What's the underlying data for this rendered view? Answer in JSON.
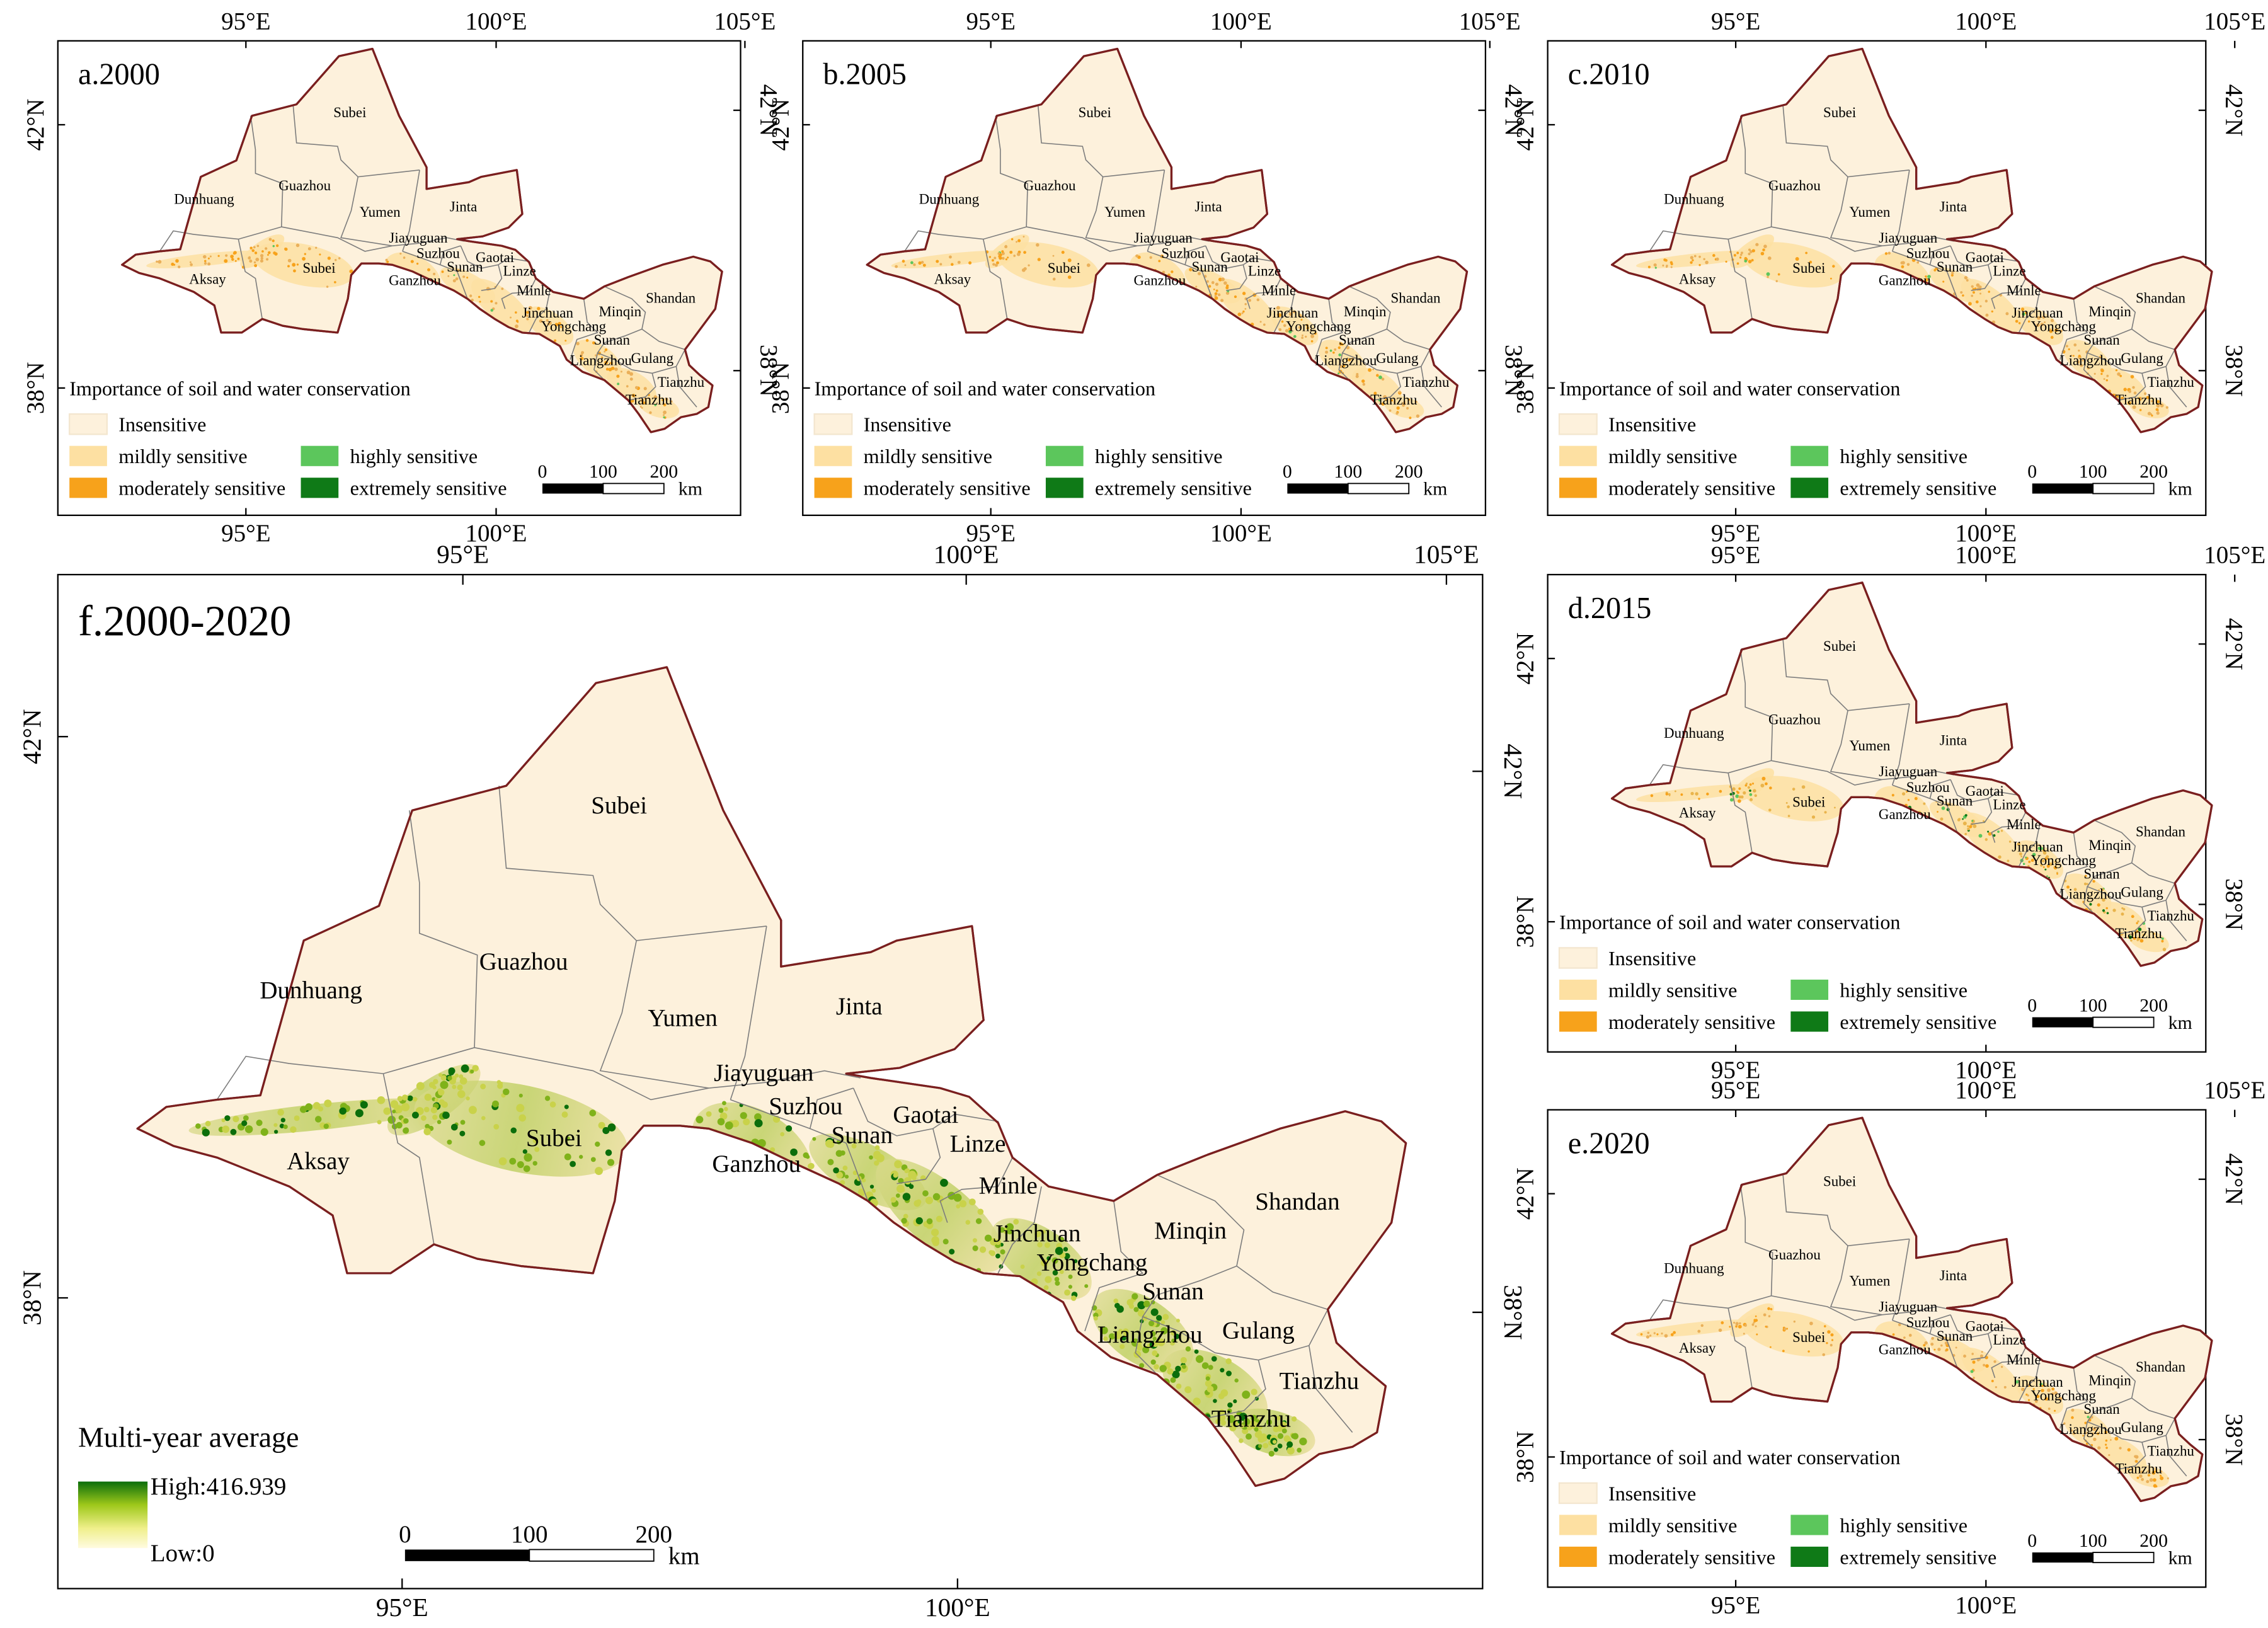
{
  "coordinate_labels": {
    "lon": [
      "95°E",
      "100°E",
      "105°E"
    ],
    "lat": [
      "42°N",
      "38°N"
    ]
  },
  "small_panels": [
    {
      "key": "a",
      "title": "a.2000"
    },
    {
      "key": "b",
      "title": "b.2005"
    },
    {
      "key": "c",
      "title": "c.2010"
    },
    {
      "key": "d",
      "title": "d.2015"
    },
    {
      "key": "e",
      "title": "e.2020"
    }
  ],
  "main_panel": {
    "title": "f.2000-2020",
    "legend": {
      "title": "Multi-year average",
      "high": "High:416.939",
      "low": "Low:0"
    }
  },
  "legend_small": {
    "title": "Importance of soil and water conservation",
    "classes": [
      {
        "label": "Insensitive",
        "color": "#fdf1dc"
      },
      {
        "label": "mildly sensitive",
        "color": "#fde0a2"
      },
      {
        "label": "highly sensitive",
        "color": "#5cc65c"
      },
      {
        "label": "moderately sensitive",
        "color": "#f7a21b"
      },
      {
        "label": "extremely sensitive",
        "color": "#0f7a17"
      }
    ]
  },
  "scalebar": {
    "ticks": [
      "0",
      "100",
      "200"
    ],
    "unit": "km"
  },
  "counties": [
    "Subei",
    "Dunhuang",
    "Guazhou",
    "Yumen",
    "Jinta",
    "Jiayuguan",
    "Suzhou",
    "Gaotai",
    "Sunan",
    "Linze",
    "Aksay",
    "Subei",
    "Ganzhou",
    "Minle",
    "Jinchuan",
    "Minqin",
    "Shandan",
    "Yongchang",
    "Sunan",
    "Liangzhou",
    "Gulang",
    "Tianzhu"
  ],
  "colors": {
    "boundary": "#7a1f1f",
    "county_line": "#7d7d7d",
    "base_fill": "#fdf1dc",
    "gradient_high": "#0b6e0b",
    "gradient_mid": "#9ec81a",
    "gradient_low": "#fffbe0"
  }
}
